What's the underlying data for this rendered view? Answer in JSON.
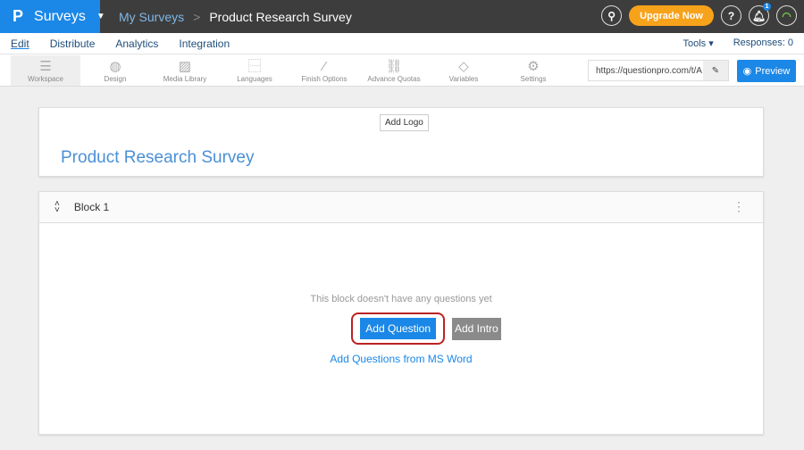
{
  "topbar": {
    "logo": "P",
    "app": "Surveys",
    "breadcrumb_root": "My Surveys",
    "breadcrumb_sep": ">",
    "breadcrumb_current": "Product Research Survey",
    "upgrade": "Upgrade Now",
    "help": "?",
    "notification_count": "1"
  },
  "nav": {
    "items": [
      "Edit",
      "Distribute",
      "Analytics",
      "Integration"
    ],
    "tools": "Tools ▾",
    "responses": "Responses: 0"
  },
  "toolbar": {
    "items": [
      {
        "label": "Workspace",
        "icon": "list-icon"
      },
      {
        "label": "Design",
        "icon": "palette-icon"
      },
      {
        "label": "Media Library",
        "icon": "image-icon"
      },
      {
        "label": "Languages",
        "icon": "translate-icon"
      },
      {
        "label": "Finish Options",
        "icon": "wand-icon"
      },
      {
        "label": "Advance Quotas",
        "icon": "link-icon"
      },
      {
        "label": "Variables",
        "icon": "tag-icon"
      },
      {
        "label": "Settings",
        "icon": "gear-icon"
      }
    ],
    "url": "https://questionpro.com/t/A",
    "preview": "Preview"
  },
  "survey": {
    "add_logo": "Add Logo",
    "title": "Product Research Survey"
  },
  "block": {
    "name": "Block 1",
    "empty": "This block doesn't have any questions yet",
    "add_question": "Add Question",
    "add_intro": "Add Intro",
    "ms_word": "Add Questions from MS Word"
  },
  "colors": {
    "accent": "#1b87e6",
    "upgrade": "#f7a21b",
    "highlight": "#b22222"
  }
}
